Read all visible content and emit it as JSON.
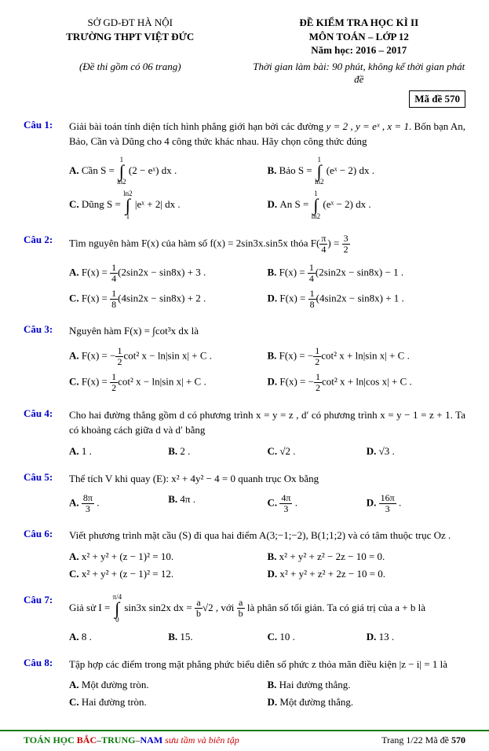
{
  "header": {
    "left1": "SỞ GD-ĐT HÀ NỘI",
    "left2": "TRƯỜNG THPT VIỆT ĐỨC",
    "right1": "ĐỀ KIỂM TRA HỌC KÌ II",
    "right2": "MÔN TOÁN – LỚP 12",
    "right3": "Năm học: 2016 – 2017",
    "sub_left": "(Đề thi gồm có 06 trang)",
    "sub_right": "Thời gian làm bài: 90 phút, không kể thời gian phát đề",
    "made": "Mã đề 570"
  },
  "q1": {
    "label": "Câu 1:",
    "stem_a": "Giải bài toán tính diện tích hình phẳng giới hạn bởi các đường ",
    "stem_b": "y = 2 , y = eˣ , x = 1",
    "stem_c": ". Bốn bạn An, Bảo, Cần và Dũng cho 4 công thức khác nhau. Hãy chọn công thức đúng",
    "A_pre": "Cần S = ",
    "A_int_ub": "1",
    "A_int_lb": "ln2",
    "A_post": "(2 − eˣ) dx .",
    "B_pre": "Bảo S = ",
    "B_int_ub": "1",
    "B_int_lb": "ln2",
    "B_post": "(eˣ − 2) dx .",
    "C_pre": "Dũng S = ",
    "C_int_ub": "ln2",
    "C_int_lb": "1",
    "C_post": "|eˣ + 2| dx .",
    "D_pre": "An S = ",
    "D_int_ub": "1",
    "D_int_lb": "ln2",
    "D_post": "(eˣ − 2) dx ."
  },
  "q2": {
    "label": "Câu 2:",
    "stem_a": "Tìm nguyên hàm F(x) của hàm số f(x) = 2sin3x.sin5x thỏa ",
    "cond_lhs": "F",
    "cond_paren_n": "π",
    "cond_paren_d": "4",
    "cond_eq": " = ",
    "cond_rhs_n": "3",
    "cond_rhs_d": "2",
    "A": "F(x) = ",
    "A_n": "1",
    "A_d": "4",
    "A_tail": "(2sin2x − sin8x) + 3 .",
    "B": "F(x) = ",
    "B_n": "1",
    "B_d": "4",
    "B_tail": "(2sin2x − sin8x) − 1 .",
    "C": "F(x) = ",
    "C_n": "1",
    "C_d": "8",
    "C_tail": "(4sin2x − sin8x) + 2 .",
    "D": "F(x) = ",
    "D_n": "1",
    "D_d": "8",
    "D_tail": "(4sin2x − sin8x) + 1 ."
  },
  "q3": {
    "label": "Câu 3:",
    "stem": "Nguyên hàm F(x) = ∫cot³x dx  là",
    "A": "F(x) = −",
    "A_n": "1",
    "A_d": "2",
    "A_tail": "cot² x − ln|sin x| + C .",
    "B": "F(x) = −",
    "B_n": "1",
    "B_d": "2",
    "B_tail": "cot² x + ln|sin x| + C .",
    "C": "F(x) = ",
    "C_n": "1",
    "C_d": "2",
    "C_tail": "cot² x − ln|sin x| + C .",
    "D": "F(x) = −",
    "D_n": "1",
    "D_d": "2",
    "D_tail": "cot² x + ln|cos x| + C ."
  },
  "q4": {
    "label": "Câu 4:",
    "stem": "Cho hai đường thẳng gồm d có phương trình x = y = z , d′ có phương trình x = y − 1 = z + 1. Ta có khoảng cách giữa d và d′ bằng",
    "A": "1 .",
    "B": "2 .",
    "C": "√2 .",
    "D": "√3 ."
  },
  "q5": {
    "label": "Câu 5:",
    "stem": "Thể tích V khi quay (E): x² + 4y² − 4 = 0 quanh trục Ox bằng",
    "A_n": "8π",
    "A_d": "3",
    "A_post": ".",
    "B": "4π .",
    "C_n": "4π",
    "C_d": "3",
    "C_post": ".",
    "D_n": "16π",
    "D_d": "3",
    "D_post": "."
  },
  "q6": {
    "label": "Câu 6:",
    "stem": "Viết phương trình mặt cầu (S) đi qua hai điểm A(3;−1;−2), B(1;1;2) và có tâm thuộc trục Oz .",
    "A": "x² + y² + (z − 1)² = 10.",
    "B": "x² + y² + z² − 2z − 10 = 0.",
    "C": "x² + y² + (z − 1)² = 12.",
    "D": "x² + y² + z² + 2z − 10 = 0."
  },
  "q7": {
    "label": "Câu 7:",
    "stem_pre": "Giả sử I = ",
    "int_ub": "π/4",
    "int_lb": "0",
    "int_body": "sin3x sin2x dx = ",
    "f1_n": "a",
    "f1_d": "b",
    "sq": "√2 , với ",
    "f2_n": "a",
    "f2_d": "b",
    "stem_post": " là phân số tối giản. Ta có giá trị của a + b là",
    "A": "8 .",
    "B": "15.",
    "C": "10 .",
    "D": "13 ."
  },
  "q8": {
    "label": "Câu 8:",
    "stem": "Tập hợp các điểm trong mặt phẳng phức biểu diễn số phức z thỏa mãn điều kiện |z − i| = 1 là",
    "A": "Một đường tròn.",
    "B": "Hai đường thẳng.",
    "C": "Hai đường tròn.",
    "D": "Một đường thẳng."
  },
  "footer": {
    "toan": "TOÁN HỌC ",
    "bac": "BẮC",
    "dash1": "–",
    "trung": "TRUNG",
    "dash2": "–",
    "nam": "NAM ",
    "tag": "sưu tầm và biên tập",
    "page": "Trang 1/22  Mã đề ",
    "code": "570"
  }
}
